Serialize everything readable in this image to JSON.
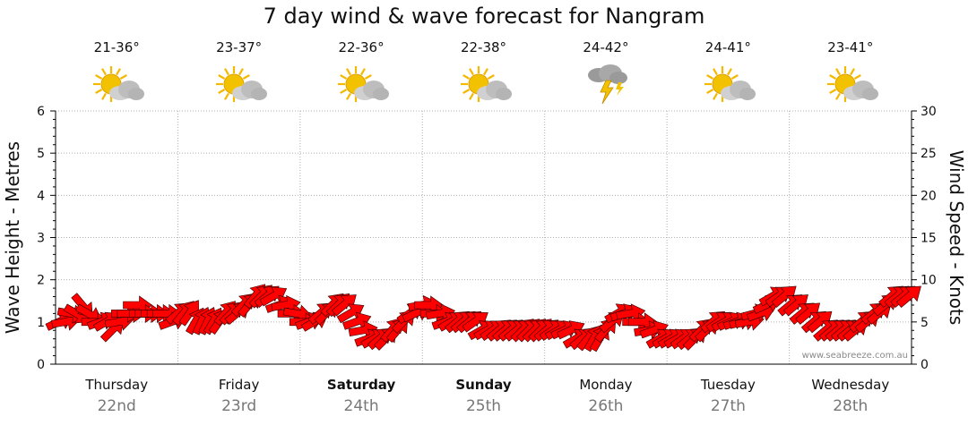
{
  "page": {
    "title": "7 day wind & wave forecast for Nangram"
  },
  "days": [
    {
      "name": "Thursday",
      "date": "22nd",
      "temp": "21-36°",
      "icon": "partly-cloudy-sun-icon",
      "bold": false
    },
    {
      "name": "Friday",
      "date": "23rd",
      "temp": "23-37°",
      "icon": "partly-cloudy-sun-icon",
      "bold": false
    },
    {
      "name": "Saturday",
      "date": "24th",
      "temp": "22-36°",
      "icon": "partly-cloudy-sun-icon",
      "bold": true
    },
    {
      "name": "Sunday",
      "date": "25th",
      "temp": "22-38°",
      "icon": "partly-cloudy-sun-icon",
      "bold": true
    },
    {
      "name": "Monday",
      "date": "26th",
      "temp": "24-42°",
      "icon": "thunderstorm-icon",
      "bold": false
    },
    {
      "name": "Tuesday",
      "date": "27th",
      "temp": "24-41°",
      "icon": "partly-cloudy-sun-icon",
      "bold": false
    },
    {
      "name": "Wednesday",
      "date": "28th",
      "temp": "23-41°",
      "icon": "partly-cloudy-sun-icon",
      "bold": false
    }
  ],
  "credit": "www.seabreeze.com.au",
  "colors": {
    "arrow_fill": "#ff0000",
    "arrow_stroke": "#330000",
    "grid": "#b0b0b0",
    "sun": "#f2c200",
    "cloud": "#bdbdbd"
  },
  "chart_data": {
    "type": "line",
    "title": "7 day wind & wave forecast for Nangram",
    "ylabel_left": "Wave Height - Metres",
    "ylabel_right": "Wind Speed - Knots",
    "ylim_left": [
      0,
      6
    ],
    "ylim_right": [
      0,
      30
    ],
    "yticks_left": [
      "0",
      "1",
      "2",
      "3",
      "4",
      "5",
      "6"
    ],
    "yticks_right": [
      "0",
      "5",
      "10",
      "15",
      "20",
      "25",
      "30"
    ],
    "grid": true,
    "categories": [
      "Thursday 22nd",
      "Friday 23rd",
      "Saturday 24th",
      "Sunday 25th",
      "Monday 26th",
      "Tuesday 27th",
      "Wednesday 28th"
    ],
    "series": [
      {
        "values_knots": [
          5,
          5,
          6,
          6,
          7,
          6,
          5,
          5,
          5,
          4,
          5,
          6,
          6,
          7,
          6,
          6,
          6,
          6,
          6,
          5,
          6,
          6,
          6,
          5,
          5,
          5,
          5,
          5,
          6,
          6,
          6,
          7,
          7,
          8,
          8,
          8,
          8,
          7,
          7,
          6,
          6,
          5,
          5,
          5,
          6,
          6,
          7,
          7,
          7,
          6,
          5,
          4,
          3,
          3,
          3,
          3,
          4,
          4,
          5,
          6,
          6,
          7,
          7,
          6,
          6,
          5,
          5,
          5,
          5,
          5,
          5,
          4,
          4,
          4,
          4,
          4,
          4,
          4,
          4,
          4,
          4,
          4,
          4,
          4,
          4,
          4,
          4,
          3,
          3,
          3,
          3,
          3,
          4,
          5,
          6,
          6,
          6,
          5,
          5,
          4,
          4,
          3,
          3,
          3,
          3,
          3,
          3,
          3,
          4,
          4,
          5,
          5,
          5,
          5,
          5,
          5,
          5,
          6,
          6,
          7,
          8,
          8,
          8,
          7,
          7,
          6,
          6,
          5,
          5,
          4,
          4,
          4,
          4,
          4,
          4,
          5,
          5,
          6,
          6,
          7,
          8,
          8,
          8,
          8
        ],
        "directions_deg": [
          245,
          260,
          280,
          300,
          320,
          300,
          270,
          250,
          240,
          225,
          260,
          270,
          270,
          270,
          270,
          270,
          270,
          270,
          270,
          250,
          230,
          220,
          215,
          210,
          205,
          205,
          210,
          215,
          220,
          225,
          230,
          225,
          220,
          220,
          225,
          230,
          240,
          250,
          260,
          270,
          280,
          270,
          250,
          240,
          230,
          225,
          225,
          225,
          230,
          240,
          250,
          260,
          250,
          240,
          230,
          225,
          220,
          220,
          225,
          235,
          245,
          260,
          270,
          270,
          260,
          250,
          240,
          230,
          230,
          230,
          235,
          240,
          240,
          235,
          230,
          230,
          230,
          230,
          225,
          225,
          225,
          225,
          230,
          235,
          240,
          245,
          245,
          240,
          230,
          220,
          210,
          210,
          220,
          230,
          240,
          250,
          260,
          270,
          270,
          260,
          250,
          240,
          240,
          240,
          240,
          235,
          230,
          225,
          225,
          225,
          230,
          235,
          240,
          245,
          250,
          255,
          260,
          255,
          250,
          245,
          240,
          235,
          230,
          230,
          230,
          230,
          230,
          230,
          230,
          230,
          230,
          230,
          230,
          230,
          230,
          230,
          230,
          230,
          230,
          230,
          230,
          230,
          230,
          230
        ]
      }
    ]
  }
}
